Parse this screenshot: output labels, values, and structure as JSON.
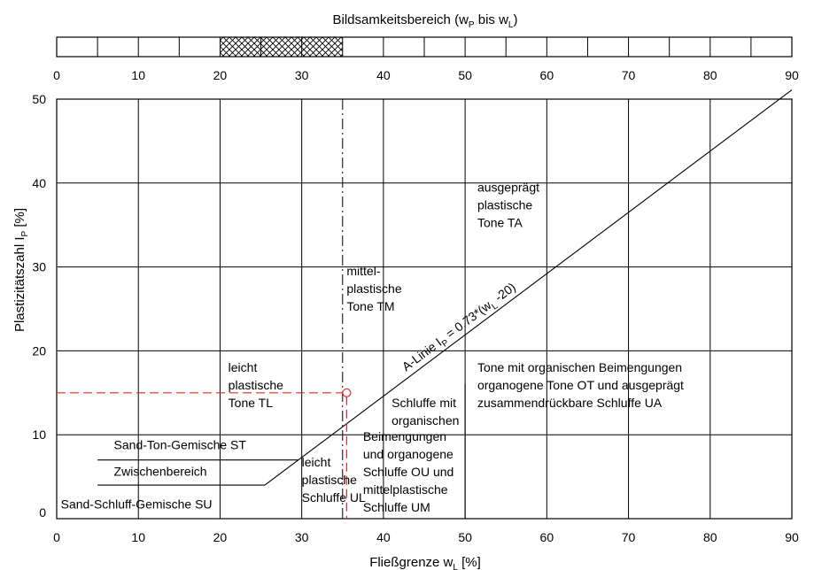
{
  "chart_data": {
    "type": "line",
    "title": "Bildsamkeitsbereich (w",
    "title_sub1": "P",
    "title_mid": " bis w",
    "title_sub2": "L",
    "title_end": ")",
    "xlabel": "Fließgrenze w",
    "xlabel_sub": "L",
    "xlabel_unit": " [%]",
    "ylabel": "Plastizitätszahl I",
    "ylabel_sub": "P",
    "ylabel_unit": " [%]",
    "xlim": [
      0,
      90
    ],
    "ylim": [
      0,
      50
    ],
    "x_ticks": [
      0,
      10,
      20,
      30,
      40,
      50,
      60,
      70,
      80,
      90
    ],
    "y_ticks": [
      0,
      10,
      20,
      30,
      40,
      50
    ],
    "top_bar": {
      "xlim": [
        0,
        90
      ],
      "tick_step": 5,
      "hatched_range": [
        20,
        35
      ]
    },
    "a_line": {
      "label_pre": "A-Linie I",
      "label_sub1": "P",
      "label_mid": " = 0.73*(w",
      "label_sub2": "L",
      "label_end": " -20)",
      "points": [
        [
          25.479,
          4
        ],
        [
          90,
          51.1
        ]
      ]
    },
    "boundary_lines": [
      {
        "name": "st-boundary",
        "points": [
          [
            5,
            7
          ],
          [
            29.589,
            7
          ]
        ]
      },
      {
        "name": "su-boundary",
        "points": [
          [
            5,
            4
          ],
          [
            25.479,
            4
          ]
        ]
      }
    ],
    "vertical_50": {
      "x": 50,
      "y_range": [
        0,
        16.06
      ]
    },
    "dash_dot_line_x": 35,
    "red_point": {
      "x": 35.5,
      "y": 15
    },
    "regions": [
      {
        "lines": [
          "ausgeprägt",
          "plastische",
          "Tone TA"
        ],
        "x": 51.5,
        "y": 39
      },
      {
        "lines": [
          "mittel-",
          "plastische",
          "Tone TM"
        ],
        "x": 35.5,
        "y": 29
      },
      {
        "lines": [
          "leicht",
          "plastische",
          "Tone TL"
        ],
        "x": 21,
        "y": 17.5
      },
      {
        "lines": [
          "Tone mit organischen Beimengungen",
          "organogene Tone OT und ausgeprägt",
          "zusammendrückbare Schluffe UA"
        ],
        "x": 51.5,
        "y": 17.5
      },
      {
        "lines": [
          "Schluffe mit",
          "organischen"
        ],
        "x": 41,
        "y": 13.3
      },
      {
        "lines": [
          "Beimengungen",
          "und organogene",
          "Schluffe OU und",
          "mittelplastische",
          "Schluffe UM"
        ],
        "x": 37.5,
        "y": 9.3
      },
      {
        "lines": [
          "leicht",
          "plastische",
          "Schluffe UL"
        ],
        "x": 30,
        "y": 6.2
      },
      {
        "lines": [
          "Sand-Ton-Gemische ST"
        ],
        "x": 7,
        "y": 8.3
      },
      {
        "lines": [
          "Zwischenbereich"
        ],
        "x": 7,
        "y": 5.1
      },
      {
        "lines": [
          "Sand-Schluff-Gemische SU"
        ],
        "x": 0.5,
        "y": 1.2
      }
    ],
    "colors": {
      "grid": "#000000",
      "red": "#e8262b"
    },
    "grid": true
  }
}
